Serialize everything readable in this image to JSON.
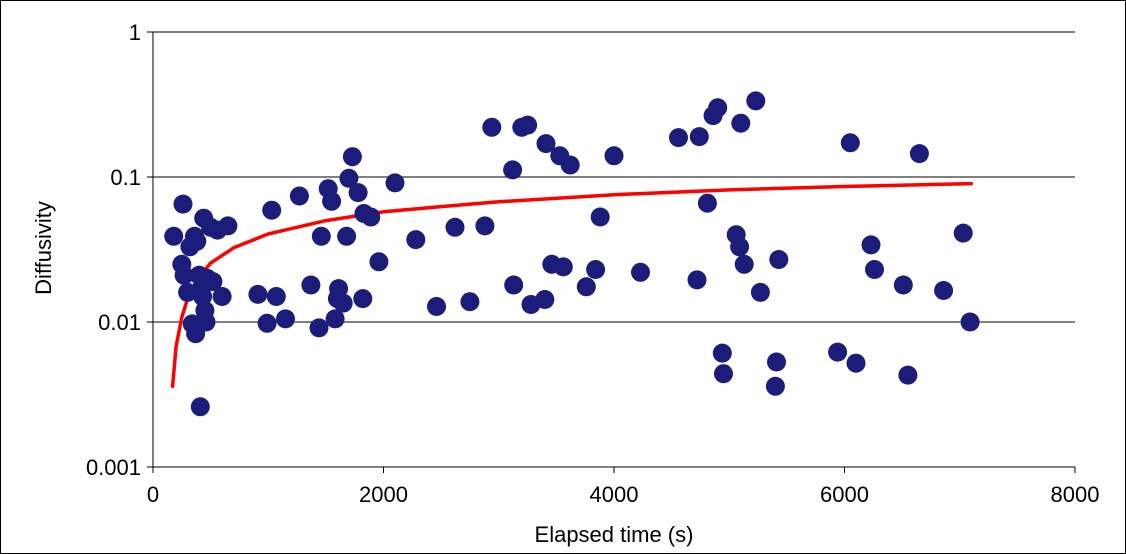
{
  "chart_data": {
    "type": "scatter",
    "title": "",
    "xlabel": "Elapsed time (s)",
    "ylabel": "Diffusivity",
    "x_scale": "linear",
    "y_scale": "log",
    "xlim": [
      0,
      8000
    ],
    "ylim": [
      0.001,
      1
    ],
    "x_ticks": [
      0,
      2000,
      4000,
      6000,
      8000
    ],
    "x_tick_labels": [
      "0",
      "2000",
      "4000",
      "6000",
      "8000"
    ],
    "y_ticks": [
      0.001,
      0.01,
      0.1,
      1
    ],
    "y_tick_labels": [
      "0.001",
      "0.01",
      "0.1",
      "1"
    ],
    "grid": "horizontal major lines",
    "legend": "none",
    "colors": {
      "points": "#1c1c7a",
      "trend": "#ff0000"
    },
    "series": [
      {
        "kind": "scatter",
        "points": [
          [
            180,
            0.039
          ],
          [
            260,
            0.065
          ],
          [
            250,
            0.025
          ],
          [
            270,
            0.021
          ],
          [
            300,
            0.016
          ],
          [
            320,
            0.033
          ],
          [
            340,
            0.0097
          ],
          [
            360,
            0.039
          ],
          [
            370,
            0.0083
          ],
          [
            380,
            0.036
          ],
          [
            400,
            0.021
          ],
          [
            410,
            0.0026
          ],
          [
            420,
            0.017
          ],
          [
            430,
            0.015
          ],
          [
            440,
            0.052
          ],
          [
            450,
            0.012
          ],
          [
            460,
            0.01
          ],
          [
            470,
            0.02
          ],
          [
            500,
            0.045
          ],
          [
            520,
            0.019
          ],
          [
            560,
            0.043
          ],
          [
            600,
            0.015
          ],
          [
            650,
            0.046
          ],
          [
            910,
            0.0155
          ],
          [
            990,
            0.0098
          ],
          [
            1030,
            0.059
          ],
          [
            1070,
            0.015
          ],
          [
            1150,
            0.0105
          ],
          [
            1270,
            0.074
          ],
          [
            1370,
            0.018
          ],
          [
            1440,
            0.0091
          ],
          [
            1460,
            0.039
          ],
          [
            1520,
            0.083
          ],
          [
            1550,
            0.068
          ],
          [
            1580,
            0.0105
          ],
          [
            1600,
            0.0145
          ],
          [
            1610,
            0.017
          ],
          [
            1650,
            0.0135
          ],
          [
            1680,
            0.039
          ],
          [
            1700,
            0.098
          ],
          [
            1730,
            0.138
          ],
          [
            1780,
            0.078
          ],
          [
            1820,
            0.0145
          ],
          [
            1830,
            0.056
          ],
          [
            1890,
            0.053
          ],
          [
            1960,
            0.026
          ],
          [
            2100,
            0.091
          ],
          [
            2280,
            0.037
          ],
          [
            2460,
            0.0128
          ],
          [
            2620,
            0.045
          ],
          [
            2750,
            0.0138
          ],
          [
            2880,
            0.046
          ],
          [
            2940,
            0.22
          ],
          [
            3120,
            0.112
          ],
          [
            3130,
            0.018
          ],
          [
            3200,
            0.22
          ],
          [
            3250,
            0.228
          ],
          [
            3280,
            0.0132
          ],
          [
            3400,
            0.0143
          ],
          [
            3410,
            0.17
          ],
          [
            3460,
            0.025
          ],
          [
            3530,
            0.14
          ],
          [
            3560,
            0.024
          ],
          [
            3620,
            0.121
          ],
          [
            3760,
            0.0175
          ],
          [
            3840,
            0.023
          ],
          [
            3880,
            0.053
          ],
          [
            4000,
            0.14
          ],
          [
            4230,
            0.022
          ],
          [
            4560,
            0.187
          ],
          [
            4720,
            0.0195
          ],
          [
            4740,
            0.19
          ],
          [
            4810,
            0.066
          ],
          [
            4860,
            0.265
          ],
          [
            4900,
            0.3
          ],
          [
            4940,
            0.0061
          ],
          [
            4950,
            0.0044
          ],
          [
            5060,
            0.04
          ],
          [
            5090,
            0.033
          ],
          [
            5100,
            0.235
          ],
          [
            5130,
            0.025
          ],
          [
            5230,
            0.335
          ],
          [
            5270,
            0.016
          ],
          [
            5400,
            0.0036
          ],
          [
            5410,
            0.0053
          ],
          [
            5430,
            0.027
          ],
          [
            5940,
            0.0062
          ],
          [
            6050,
            0.172
          ],
          [
            6100,
            0.0052
          ],
          [
            6230,
            0.034
          ],
          [
            6260,
            0.023
          ],
          [
            6510,
            0.018
          ],
          [
            6550,
            0.0043
          ],
          [
            6650,
            0.145
          ],
          [
            6860,
            0.0165
          ],
          [
            7030,
            0.041
          ],
          [
            7090,
            0.01
          ]
        ]
      },
      {
        "kind": "trend-line",
        "x_range": [
          170,
          7100
        ],
        "samples": [
          [
            170,
            0.0036
          ],
          [
            200,
            0.0068
          ],
          [
            250,
            0.0108
          ],
          [
            300,
            0.0145
          ],
          [
            400,
            0.0205
          ],
          [
            500,
            0.0255
          ],
          [
            700,
            0.0325
          ],
          [
            1000,
            0.0405
          ],
          [
            1500,
            0.05
          ],
          [
            2000,
            0.0575
          ],
          [
            2500,
            0.0625
          ],
          [
            3000,
            0.0675
          ],
          [
            4000,
            0.0755
          ],
          [
            5000,
            0.0815
          ],
          [
            6000,
            0.086
          ],
          [
            7100,
            0.09
          ]
        ]
      }
    ]
  }
}
